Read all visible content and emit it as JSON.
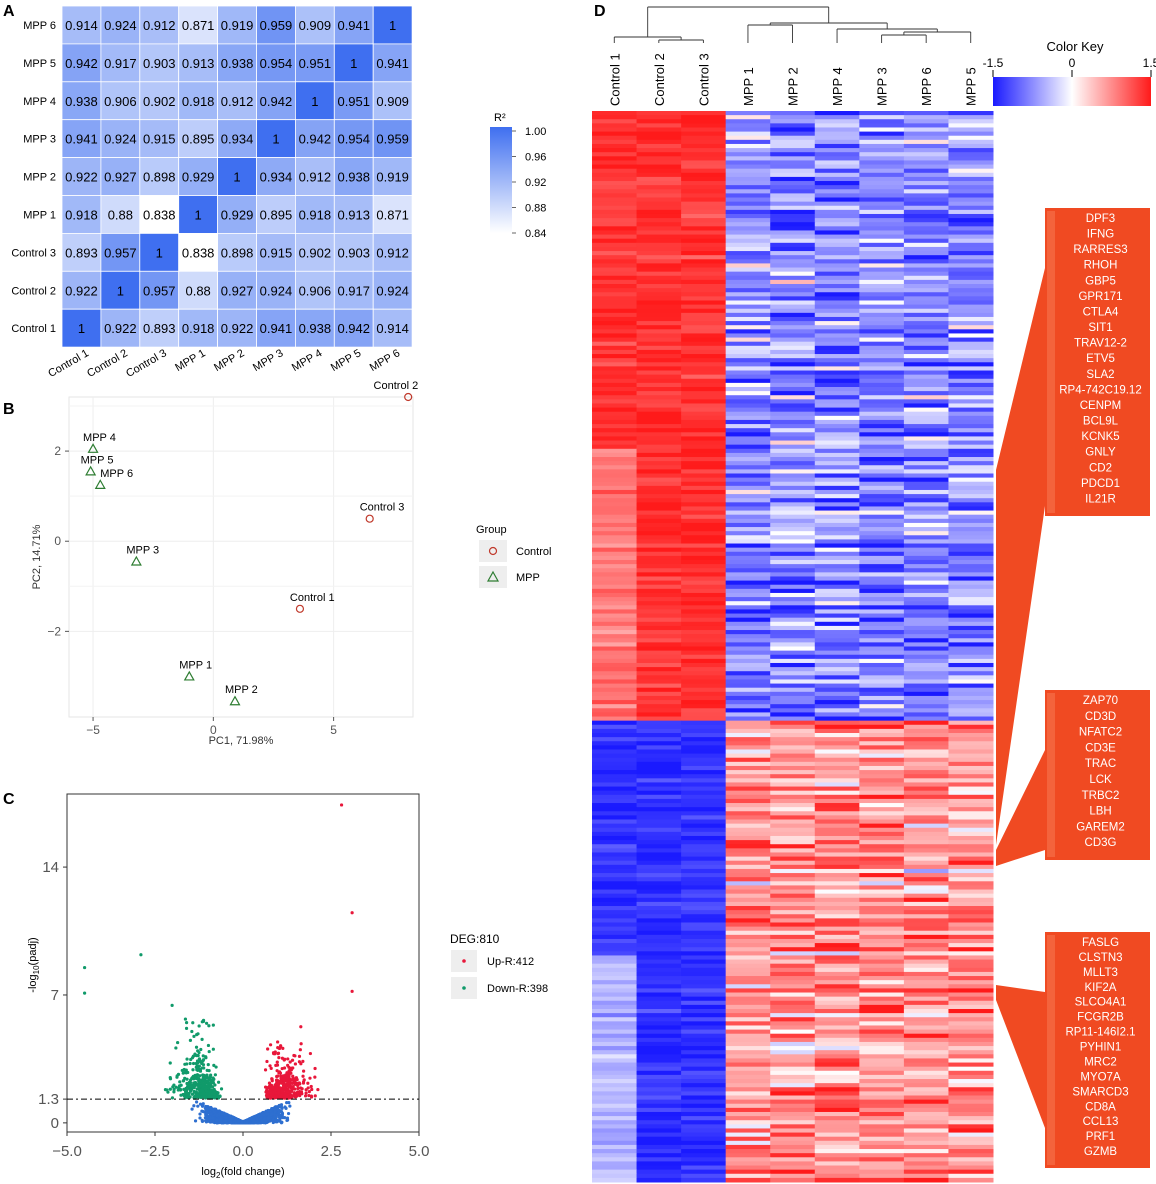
{
  "panel_labels": [
    "A",
    "B",
    "C",
    "D"
  ],
  "chart_data": [
    {
      "panel": "A",
      "type": "heatmap",
      "title": "",
      "rows": [
        "MPP 6",
        "MPP 5",
        "MPP 4",
        "MPP 3",
        "MPP 2",
        "MPP 1",
        "Control 3",
        "Control 2",
        "Control 1"
      ],
      "columns": [
        "Control 1",
        "Control 2",
        "Control 3",
        "MPP 1",
        "MPP 2",
        "MPP 3",
        "MPP 4",
        "MPP 5",
        "MPP 6"
      ],
      "values": [
        [
          "0.914",
          "0.924",
          "0.912",
          "0.871",
          "0.919",
          "0.959",
          "0.909",
          "0.941",
          "1"
        ],
        [
          "0.942",
          "0.917",
          "0.903",
          "0.913",
          "0.938",
          "0.954",
          "0.951",
          "1",
          "0.941"
        ],
        [
          "0.938",
          "0.906",
          "0.902",
          "0.918",
          "0.912",
          "0.942",
          "1",
          "0.951",
          "0.909"
        ],
        [
          "0.941",
          "0.924",
          "0.915",
          "0.895",
          "0.934",
          "1",
          "0.942",
          "0.954",
          "0.959"
        ],
        [
          "0.922",
          "0.927",
          "0.898",
          "0.929",
          "1",
          "0.934",
          "0.912",
          "0.938",
          "0.919"
        ],
        [
          "0.918",
          "0.88",
          "0.838",
          "1",
          "0.929",
          "0.895",
          "0.918",
          "0.913",
          "0.871"
        ],
        [
          "0.893",
          "0.957",
          "1",
          "0.838",
          "0.898",
          "0.915",
          "0.902",
          "0.903",
          "0.912"
        ],
        [
          "0.922",
          "1",
          "0.957",
          "0.88",
          "0.927",
          "0.924",
          "0.906",
          "0.917",
          "0.924"
        ],
        [
          "1",
          "0.922",
          "0.893",
          "0.918",
          "0.922",
          "0.941",
          "0.938",
          "0.942",
          "0.914"
        ]
      ],
      "legend_title": "R²",
      "legend_ticks": [
        "1.00",
        "0.96",
        "0.92",
        "0.88",
        "0.84"
      ],
      "color_range": [
        0.84,
        1.0
      ],
      "colors": {
        "low": "#ffffff",
        "high": "#3f6ff0"
      }
    },
    {
      "panel": "B",
      "type": "scatter",
      "xlabel": "PC1, 71.98%",
      "ylabel": "PC2, 14.71%",
      "xlim": [
        -6,
        8.3
      ],
      "ylim": [
        -3.9,
        3.2
      ],
      "xticks": [
        "−5",
        "0",
        "5"
      ],
      "xtick_values": [
        -5,
        0,
        5
      ],
      "yticks": [
        "2",
        "0",
        "−2"
      ],
      "ytick_values": [
        2,
        0,
        -2
      ],
      "legend_title": "Group",
      "series": [
        {
          "name": "Control",
          "marker": "circle",
          "color": "#c0392b",
          "points": [
            {
              "label": "Control 1",
              "x": 3.6,
              "y": -1.5
            },
            {
              "label": "Control 2",
              "x": 8.1,
              "y": 3.2
            },
            {
              "label": "Control 3",
              "x": 6.5,
              "y": 0.5
            }
          ]
        },
        {
          "name": "MPP",
          "marker": "triangle",
          "color": "#2e7d32",
          "points": [
            {
              "label": "MPP 1",
              "x": -1.0,
              "y": -3.0
            },
            {
              "label": "MPP 2",
              "x": 0.9,
              "y": -3.55
            },
            {
              "label": "MPP 3",
              "x": -3.2,
              "y": -0.45
            },
            {
              "label": "MPP 4",
              "x": -5.0,
              "y": 2.05
            },
            {
              "label": "MPP 5",
              "x": -5.1,
              "y": 1.55
            },
            {
              "label": "MPP 6",
              "x": -4.7,
              "y": 1.25
            }
          ]
        }
      ]
    },
    {
      "panel": "C",
      "type": "scatter",
      "subtype": "volcano",
      "xlabel_main": "log",
      "xlabel_sub": "2",
      "xlabel_rest": "(fold change)",
      "ylabel_pre": "-log",
      "ylabel_sub": "10",
      "ylabel_rest": "(padj)",
      "xlim": [
        -5,
        5
      ],
      "ylim": [
        -0.5,
        18
      ],
      "xticks": [
        "−5.0",
        "−2.5",
        "0.0",
        "2.5",
        "5.0"
      ],
      "xtick_values": [
        -5,
        -2.5,
        0,
        2.5,
        5
      ],
      "yticks": [
        "0",
        "1.3",
        "7",
        "14"
      ],
      "ytick_values": [
        0,
        1.3,
        7,
        14
      ],
      "threshold_y": 1.3,
      "legend_title": "DEG:810",
      "legend": [
        {
          "label": "Up-R:412",
          "color": "#e8173a"
        },
        {
          "label": "Down-R:398",
          "color": "#109a6a"
        }
      ],
      "nonsig_color": "#2e6fd0",
      "outliers": [
        [
          2.8,
          17.4
        ],
        [
          3.1,
          11.5
        ],
        [
          -4.5,
          8.5
        ],
        [
          -2.9,
          9.2
        ],
        [
          3.1,
          7.2
        ],
        [
          -4.5,
          7.1
        ]
      ]
    },
    {
      "panel": "D",
      "type": "heatmap",
      "columns": [
        "Control 1",
        "Control 2",
        "Control 3",
        "MPP 1",
        "MPP 2",
        "MPP 4",
        "MPP 3",
        "MPP 6",
        "MPP 5"
      ],
      "color_key_title": "Color Key",
      "color_key_ticks": [
        "-1.5",
        "0",
        "1.5"
      ],
      "color_key_values": [
        -1.5,
        0,
        1.5
      ],
      "colors": {
        "low": "#1a1aff",
        "mid": "#ffffff",
        "high": "#ff1a1a"
      },
      "gene_groups": [
        [
          "DPF3",
          "IFNG",
          "RARRES3",
          "RHOH",
          "GBP5",
          "GPR171",
          "CTLA4",
          "SIT1",
          "TRAV12-2",
          "ETV5",
          "SLA2",
          "RP4-742C19.12",
          "CENPM",
          "BCL9L",
          "KCNK5",
          "GNLY",
          "CD2",
          "PDCD1",
          "IL21R"
        ],
        [
          "ZAP70",
          "CD3D",
          "NFATC2",
          "CD3E",
          "TRAC",
          "LCK",
          "TRBC2",
          "LBH",
          "GAREM2",
          "CD3G"
        ],
        [
          "FASLG",
          "CLSTN3",
          "MLLT3",
          "KIF2A",
          "SLCO4A1",
          "FCGR2B",
          "RP11-146I2.1",
          "PYHIN1",
          "MRC2",
          "MYO7A",
          "SMARCD3",
          "CD8A",
          "CCL13",
          "PRF1",
          "GZMB"
        ]
      ],
      "cluster_split_fraction": 0.57
    }
  ]
}
